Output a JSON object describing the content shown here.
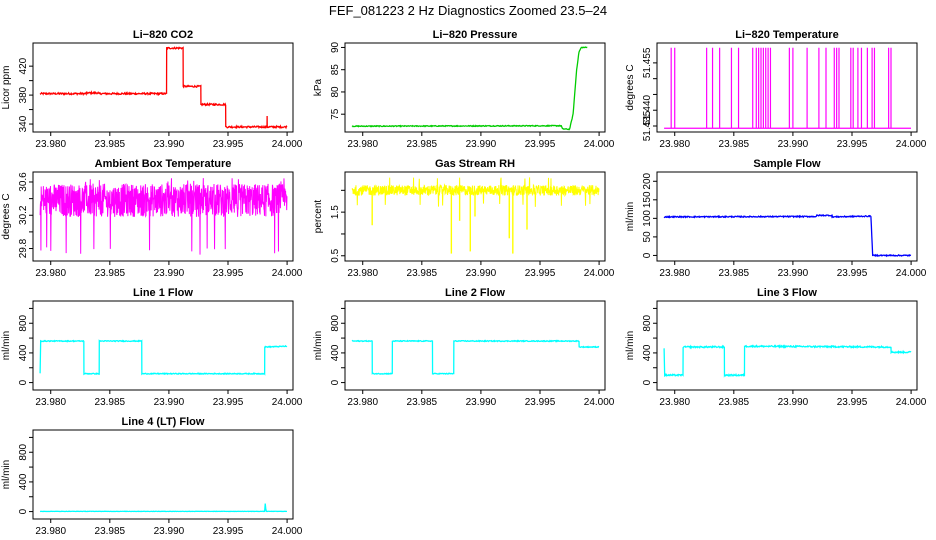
{
  "figure": {
    "title": "FEF_081223  2 Hz Diagnostics Zoomed 23.5–24"
  },
  "chart_data": [
    {
      "type": "line",
      "title": "Li−820 CO2",
      "xlabel": "",
      "ylabel": "Licor ppm",
      "xlim": [
        23.9785,
        24.0005
      ],
      "ylim": [
        329,
        452
      ],
      "xticks": [
        23.98,
        23.985,
        23.99,
        23.995,
        24.0
      ],
      "xtick_labels": [
        "23.980",
        "23.985",
        "23.990",
        "23.995",
        "24.000"
      ],
      "yticks": [
        340,
        360,
        380,
        400,
        420
      ],
      "ytick_labels": [
        "340",
        "",
        "380",
        "",
        "420"
      ],
      "color": "#ff0000",
      "noise": 1.2,
      "x": [
        23.9791,
        23.983,
        23.98301,
        23.984,
        23.98401,
        23.9898,
        23.98981,
        23.9912,
        23.99121,
        23.9927,
        23.99271,
        23.9948,
        23.99481,
        23.9983,
        23.99831,
        23.99832,
        23.99833,
        23.99999
      ],
      "y": [
        382,
        382,
        383,
        383,
        382,
        382,
        445,
        445,
        392,
        392,
        367,
        367,
        336,
        336,
        350,
        336,
        336,
        336
      ]
    },
    {
      "type": "line",
      "title": "Li−820 Pressure",
      "xlabel": "",
      "ylabel": "kPa",
      "xlim": [
        23.9785,
        24.0005
      ],
      "ylim": [
        71,
        91
      ],
      "xticks": [
        23.98,
        23.985,
        23.99,
        23.995,
        24.0
      ],
      "xtick_labels": [
        "23.980",
        "23.985",
        "23.990",
        "23.995",
        "24.000"
      ],
      "yticks": [
        75,
        80,
        85,
        90
      ],
      "ytick_labels": [
        "75",
        "80",
        "85",
        "90"
      ],
      "color": "#00cc00",
      "noise": 0.1,
      "x": [
        23.9791,
        23.996,
        23.9968,
        23.9969,
        23.9975,
        23.9978,
        23.9981,
        23.9983,
        23.9985,
        23.999
      ],
      "y": [
        72.3,
        72.4,
        72.4,
        71.7,
        71.6,
        75,
        85,
        89,
        90,
        90
      ]
    },
    {
      "type": "line",
      "title": "Li−820 Temperature",
      "xlabel": "",
      "ylabel": "degrees C",
      "xlim": [
        23.9785,
        24.0005
      ],
      "ylim": [
        51.4331,
        51.4613
      ],
      "xticks": [
        23.98,
        23.985,
        23.99,
        23.995,
        24.0
      ],
      "xtick_labels": [
        "23.980",
        "23.985",
        "23.990",
        "23.995",
        "24.000"
      ],
      "yticks": [
        51.435,
        51.44,
        51.445,
        51.45,
        51.455
      ],
      "ytick_labels": [
        "51.435",
        "51.440",
        "",
        "",
        "51.455"
      ],
      "color": "#ff00ff",
      "baseline": 51.4343,
      "high": 51.4598,
      "spikes": [
        23.9797,
        23.98,
        23.9827,
        23.9832,
        23.9838,
        23.9848,
        23.9854,
        23.9866,
        23.9869,
        23.9871,
        23.9873,
        23.9875,
        23.9877,
        23.9879,
        23.9881,
        23.9897,
        23.99,
        23.9912,
        23.9922,
        23.9928,
        23.9935,
        23.9937,
        23.9939,
        23.9949,
        23.9951,
        23.9955,
        23.9958,
        23.9963,
        23.9967,
        23.9969,
        23.9981,
        23.9983
      ]
    },
    {
      "type": "line",
      "title": "Ambient Box Temperature",
      "xlabel": "",
      "ylabel": "degrees C",
      "xlim": [
        23.9785,
        24.0005
      ],
      "ylim": [
        29.65,
        30.72
      ],
      "xticks": [
        23.98,
        23.985,
        23.99,
        23.995,
        24.0
      ],
      "xtick_labels": [
        "23.980",
        "23.985",
        "23.990",
        "23.995",
        "24.000"
      ],
      "yticks": [
        29.8,
        30.0,
        30.2,
        30.4,
        30.6
      ],
      "ytick_labels": [
        "29.8",
        "",
        "30.2",
        "",
        "30.6"
      ],
      "color": "#ff00ff",
      "band": {
        "x": [
          23.9791,
          23.99999
        ],
        "center": 30.38,
        "spread": 0.2,
        "outlier_low": 29.72,
        "outlier_high": 30.65
      }
    },
    {
      "type": "line",
      "title": "Gas Stream RH",
      "xlabel": "",
      "ylabel": "percent",
      "xlim": [
        23.9785,
        24.0005
      ],
      "ylim": [
        0.38,
        2.42
      ],
      "xticks": [
        23.98,
        23.985,
        23.99,
        23.995,
        24.0
      ],
      "xtick_labels": [
        "23.980",
        "23.985",
        "23.990",
        "23.995",
        "24.000"
      ],
      "yticks": [
        0.5,
        1.0,
        1.5,
        2.0
      ],
      "ytick_labels": [
        "0.5",
        "",
        "1.5",
        ""
      ],
      "color": "#ffff00",
      "band": {
        "x": [
          23.9791,
          23.99999
        ],
        "center": 2.0,
        "spread": 0.12,
        "outlier_low": 1.6,
        "outlier_high": 2.3
      },
      "dips": [
        [
          23.9808,
          1.2
        ],
        [
          23.9875,
          0.55
        ],
        [
          23.9882,
          1.3
        ],
        [
          23.9891,
          0.6
        ],
        [
          23.9895,
          1.4
        ],
        [
          23.9924,
          0.9
        ],
        [
          23.9927,
          0.55
        ],
        [
          23.9939,
          1.1
        ]
      ]
    },
    {
      "type": "line",
      "title": "Sample Flow",
      "xlabel": "",
      "ylabel": "ml/min",
      "xlim": [
        23.9785,
        24.0005
      ],
      "ylim": [
        -15,
        225
      ],
      "xticks": [
        23.98,
        23.985,
        23.99,
        23.995,
        24.0
      ],
      "xtick_labels": [
        "23.980",
        "23.985",
        "23.990",
        "23.995",
        "24.000"
      ],
      "yticks": [
        0,
        50,
        100,
        150,
        200
      ],
      "ytick_labels": [
        "0",
        "50",
        "100",
        "150",
        "200"
      ],
      "color": "#0000ff",
      "noise": 1.5,
      "x": [
        23.9791,
        23.992,
        23.99201,
        23.9933,
        23.99331,
        23.9966,
        23.99675,
        23.99999
      ],
      "y": [
        104,
        105,
        108,
        108,
        104,
        106,
        0,
        0
      ]
    },
    {
      "type": "line",
      "title": "Line 1 Flow",
      "xlabel": "",
      "ylabel": "ml/min",
      "xlim": [
        23.9785,
        24.0005
      ],
      "ylim": [
        -100,
        1100
      ],
      "xticks": [
        23.98,
        23.985,
        23.99,
        23.995,
        24.0
      ],
      "xtick_labels": [
        "23.980",
        "23.985",
        "23.990",
        "23.995",
        "24.000"
      ],
      "yticks": [
        0,
        200,
        400,
        600,
        800,
        1000
      ],
      "ytick_labels": [
        "0",
        "",
        "400",
        "",
        "800",
        ""
      ],
      "color": "#00ffff",
      "noise": 6,
      "x": [
        23.9791,
        23.97915,
        23.9828,
        23.98281,
        23.9841,
        23.98411,
        23.9877,
        23.98771,
        23.9981,
        23.99811,
        23.99999
      ],
      "y": [
        120,
        560,
        560,
        120,
        120,
        560,
        560,
        120,
        120,
        480,
        490
      ]
    },
    {
      "type": "line",
      "title": "Line 2 Flow",
      "xlabel": "",
      "ylabel": "ml/min",
      "xlim": [
        23.9785,
        24.0005
      ],
      "ylim": [
        -100,
        1100
      ],
      "xticks": [
        23.98,
        23.985,
        23.99,
        23.995,
        24.0
      ],
      "xtick_labels": [
        "23.980",
        "23.985",
        "23.990",
        "23.995",
        "24.000"
      ],
      "yticks": [
        0,
        200,
        400,
        600,
        800,
        1000
      ],
      "ytick_labels": [
        "0",
        "",
        "400",
        "",
        "800",
        ""
      ],
      "color": "#00ffff",
      "noise": 6,
      "x": [
        23.9791,
        23.9808,
        23.98081,
        23.9825,
        23.98251,
        23.9859,
        23.98591,
        23.9877,
        23.98771,
        23.9983,
        23.99831,
        23.99999
      ],
      "y": [
        560,
        560,
        120,
        120,
        560,
        560,
        120,
        120,
        560,
        560,
        480,
        480
      ]
    },
    {
      "type": "line",
      "title": "Line 3 Flow",
      "xlabel": "",
      "ylabel": "ml/min",
      "xlim": [
        23.9785,
        24.0005
      ],
      "ylim": [
        -100,
        1100
      ],
      "xticks": [
        23.98,
        23.985,
        23.99,
        23.995,
        24.0
      ],
      "xtick_labels": [
        "23.980",
        "23.985",
        "23.990",
        "23.995",
        "24.000"
      ],
      "yticks": [
        0,
        200,
        400,
        600,
        800,
        1000
      ],
      "ytick_labels": [
        "0",
        "",
        "400",
        "",
        "800",
        ""
      ],
      "color": "#00ffff",
      "noise": 10,
      "x": [
        23.9791,
        23.97915,
        23.9807,
        23.98071,
        23.9842,
        23.98421,
        23.9859,
        23.98591,
        23.9983,
        23.99831,
        23.99999
      ],
      "y": [
        470,
        100,
        100,
        480,
        480,
        100,
        100,
        490,
        480,
        410,
        410
      ]
    },
    {
      "type": "line",
      "title": "Line 4 (LT) Flow",
      "xlabel": "",
      "ylabel": "ml/min",
      "xlim": [
        23.9785,
        24.0005
      ],
      "ylim": [
        -100,
        1100
      ],
      "xticks": [
        23.98,
        23.985,
        23.99,
        23.995,
        24.0
      ],
      "xtick_labels": [
        "23.980",
        "23.985",
        "23.990",
        "23.995",
        "24.000"
      ],
      "yticks": [
        0,
        200,
        400,
        600,
        800,
        1000
      ],
      "ytick_labels": [
        "0",
        "",
        "400",
        "",
        "800",
        ""
      ],
      "color": "#00ffff",
      "noise": 2,
      "x": [
        23.9791,
        23.9981,
        23.99815,
        23.9982,
        23.99825,
        23.99999
      ],
      "y": [
        3,
        3,
        110,
        30,
        3,
        3
      ]
    }
  ]
}
